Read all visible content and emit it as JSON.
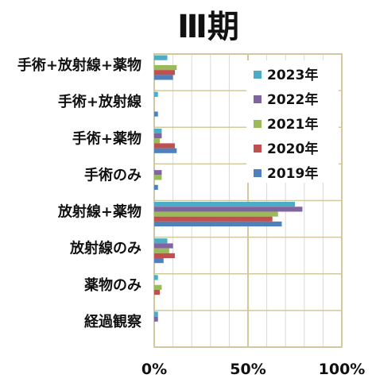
{
  "chart_data": {
    "type": "bar",
    "orientation": "horizontal",
    "title": "Ⅲ期",
    "xlabel": "",
    "ylabel": "",
    "xlim": [
      0,
      100
    ],
    "x_ticks": [
      "0%",
      "50%",
      "100%"
    ],
    "x_tick_values": [
      0,
      50,
      100
    ],
    "grid": true,
    "legend_position": "top-right",
    "categories": [
      "手術+放射線+薬物",
      "手術+放射線",
      "手術+薬物",
      "手術のみ",
      "放射線+薬物",
      "放射線のみ",
      "薬物のみ",
      "経過観察"
    ],
    "series": [
      {
        "name": "2023年",
        "color": "#4bacc6",
        "values": [
          7,
          2,
          4,
          0,
          75,
          7,
          2,
          2
        ]
      },
      {
        "name": "2022年",
        "color": "#8064a2",
        "values": [
          0,
          0,
          4,
          4,
          79,
          10,
          0,
          2
        ]
      },
      {
        "name": "2021年",
        "color": "#9bbb59",
        "values": [
          12,
          0,
          3,
          4,
          66,
          8,
          4,
          0
        ]
      },
      {
        "name": "2020年",
        "color": "#c0504d",
        "values": [
          11,
          0,
          11,
          0,
          63,
          11,
          3,
          0
        ]
      },
      {
        "name": "2019年",
        "color": "#4f81bd",
        "values": [
          10,
          2,
          12,
          2,
          68,
          5,
          0,
          0
        ]
      }
    ],
    "legend_order": [
      "2023年",
      "2022年",
      "2021年",
      "2020年",
      "2019年"
    ]
  },
  "colors": {
    "plot_border": "#d2c8a0",
    "grid_major": "#d2c8a0",
    "grid_minor": "#d9d9d9"
  }
}
